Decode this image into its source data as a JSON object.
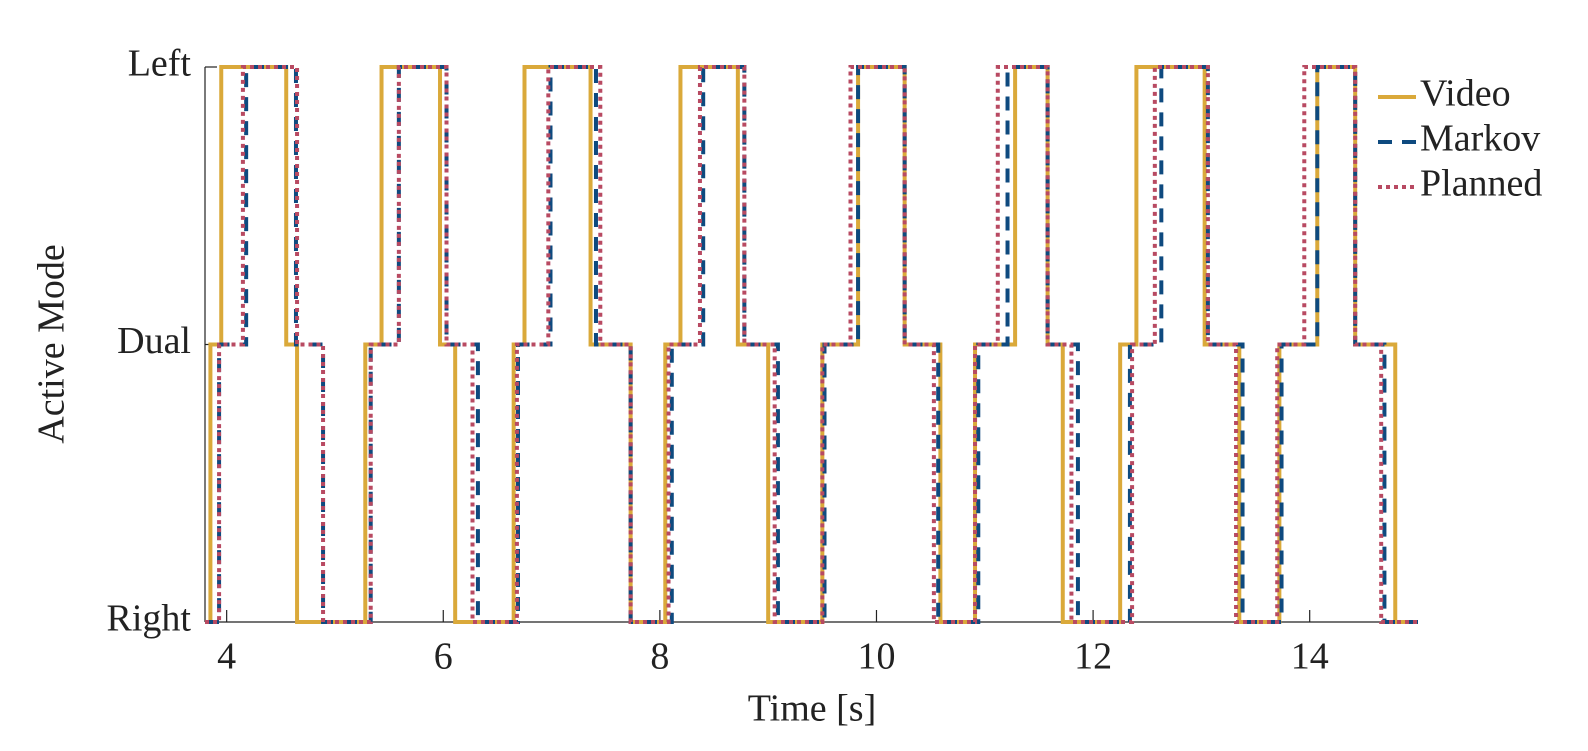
{
  "chart_data": {
    "type": "line",
    "drawstyle": "steps-post",
    "xlabel": "Time [s]",
    "ylabel": "Active Mode",
    "xlim": [
      3.8,
      15
    ],
    "xticks": [
      4,
      6,
      8,
      10,
      12,
      14
    ],
    "ylim": [
      0,
      2
    ],
    "yticks": [
      {
        "value": 0,
        "label": "Right"
      },
      {
        "value": 1,
        "label": "Dual"
      },
      {
        "value": 2,
        "label": "Left"
      }
    ],
    "legend": "upper right",
    "series": [
      {
        "name": "Video",
        "color": "#daa93a",
        "dash": "solid",
        "x": [
          3.8,
          3.85,
          3.95,
          4.55,
          4.65,
          5.28,
          5.43,
          5.97,
          6.11,
          6.65,
          6.75,
          7.36,
          7.73,
          8.05,
          8.19,
          8.72,
          9.0,
          9.5,
          9.83,
          10.26,
          10.59,
          10.91,
          11.28,
          11.58,
          11.72,
          12.25,
          12.4,
          13.03,
          13.35,
          13.72,
          14.07,
          14.42,
          14.79,
          15
        ],
        "values": [
          0,
          1,
          2,
          1,
          0,
          1,
          2,
          1,
          0,
          1,
          2,
          1,
          0,
          1,
          2,
          1,
          0,
          1,
          2,
          1,
          0,
          1,
          2,
          1,
          0,
          1,
          2,
          1,
          0,
          1,
          2,
          1,
          0,
          0
        ]
      },
      {
        "name": "Markov",
        "color": "#0e4a7f",
        "dash": "dashed",
        "x": [
          3.8,
          3.93,
          4.18,
          4.64,
          4.89,
          5.33,
          5.59,
          6.03,
          6.32,
          6.69,
          6.99,
          7.41,
          7.73,
          8.11,
          8.4,
          8.78,
          9.09,
          9.52,
          9.83,
          10.26,
          10.57,
          10.94,
          11.21,
          11.58,
          11.86,
          12.34,
          12.63,
          13.06,
          13.38,
          13.74,
          14.07,
          14.42,
          14.69,
          15
        ],
        "values": [
          0,
          1,
          2,
          1,
          0,
          1,
          2,
          1,
          0,
          1,
          2,
          1,
          0,
          1,
          2,
          1,
          0,
          1,
          2,
          1,
          0,
          1,
          2,
          1,
          0,
          1,
          2,
          1,
          0,
          1,
          2,
          1,
          0,
          0
        ]
      },
      {
        "name": "Planned",
        "color": "#b84a62",
        "dash": "dotted",
        "x": [
          3.8,
          3.93,
          4.15,
          4.65,
          4.89,
          5.33,
          5.59,
          6.03,
          6.27,
          6.68,
          6.97,
          7.45,
          7.73,
          8.08,
          8.37,
          8.78,
          9.06,
          9.5,
          9.76,
          10.26,
          10.53,
          10.91,
          11.12,
          11.58,
          11.8,
          12.36,
          12.57,
          13.06,
          13.32,
          13.7,
          13.95,
          14.42,
          14.66,
          15
        ],
        "values": [
          0,
          1,
          2,
          1,
          0,
          1,
          2,
          1,
          0,
          1,
          2,
          1,
          0,
          1,
          2,
          1,
          0,
          1,
          2,
          1,
          0,
          1,
          2,
          1,
          0,
          1,
          2,
          1,
          0,
          1,
          2,
          1,
          0,
          0
        ]
      }
    ]
  }
}
